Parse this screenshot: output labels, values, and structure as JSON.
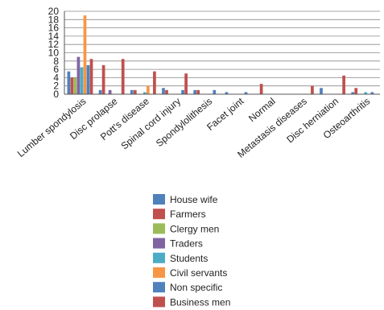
{
  "chart_data": {
    "type": "bar",
    "title": "",
    "xlabel": "",
    "ylabel": "",
    "ylim": [
      0,
      20
    ],
    "yticks": [
      0,
      2,
      4,
      6,
      8,
      10,
      12,
      14,
      16,
      18,
      20
    ],
    "grid": true,
    "legend_position": "bottom",
    "categories": [
      "Lumber spondylosis",
      "Disc prolapse",
      "Pott's disease",
      "Spinal cord injury",
      "Spondylolithesis",
      "Facet joint",
      "Normal",
      "Metastasis diseases",
      "Disc herniation",
      "Osteoarthritis"
    ],
    "series": [
      {
        "name": "House wife",
        "color": "#4F81BD",
        "values": [
          5.5,
          1,
          1,
          1.5,
          1,
          0.5,
          0,
          0,
          1.5,
          0.5
        ]
      },
      {
        "name": "Farmers",
        "color": "#C0504D",
        "values": [
          4,
          7,
          1,
          1,
          1,
          0,
          2.5,
          0,
          0,
          1.5
        ]
      },
      {
        "name": "Clergy men",
        "color": "#9BBB59",
        "values": [
          4,
          0,
          0,
          0,
          0,
          0,
          0,
          0,
          0,
          0
        ]
      },
      {
        "name": "Traders",
        "color": "#8064A2",
        "values": [
          9,
          1,
          0,
          0,
          0,
          0,
          0,
          0,
          0,
          0
        ]
      },
      {
        "name": "Students",
        "color": "#4BACC6",
        "values": [
          6.5,
          0,
          0.5,
          0,
          0,
          0,
          0,
          0,
          0,
          0.5
        ]
      },
      {
        "name": "Civil servants",
        "color": "#F79646",
        "values": [
          19,
          0,
          2,
          0,
          0,
          0,
          0,
          0,
          0,
          0
        ]
      },
      {
        "name": "Non specific",
        "color": "#4F81BD",
        "values": [
          7,
          0,
          0,
          1,
          1,
          0.5,
          0,
          0,
          0,
          0.5
        ]
      },
      {
        "name": "Business men",
        "color": "#C0504D",
        "values": [
          8.5,
          8.5,
          5.5,
          5,
          0,
          0,
          0,
          2,
          4.5,
          0
        ]
      }
    ]
  }
}
